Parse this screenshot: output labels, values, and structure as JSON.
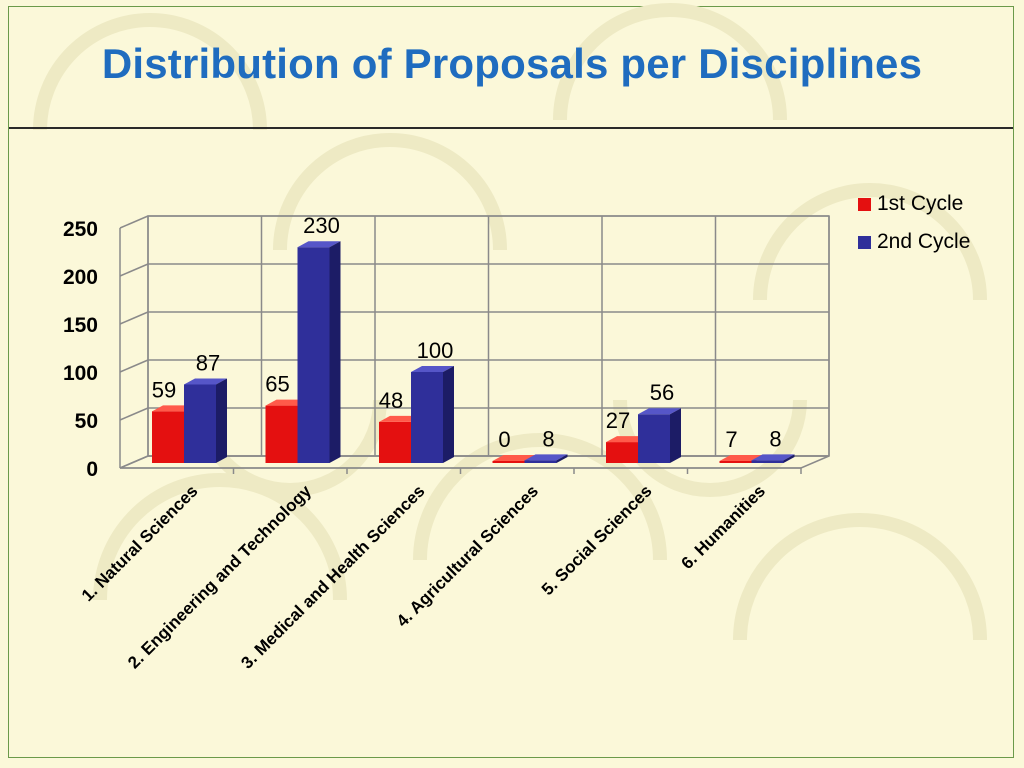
{
  "slide": {
    "title": "Distribution of Proposals per Disciplines"
  },
  "colors": {
    "background": "#fbf8d9",
    "title": "#1f6cbf",
    "series_1st": "#e41010",
    "series_2nd": "#2f2f9a",
    "grid": "#8a8a8a"
  },
  "chart_data": {
    "type": "bar",
    "title": "",
    "xlabel": "",
    "ylabel": "",
    "ylim": [
      0,
      250
    ],
    "yticks": [
      "0",
      "50",
      "100",
      "150",
      "200",
      "250"
    ],
    "grid": true,
    "legend_position": "top-right",
    "categories": [
      "1. Natural Sciences",
      "2. Engineering and Technology",
      "3. Medical and Health Sciences",
      "4. Agricultural Sciences",
      "5. Social Sciences",
      "6. Humanities"
    ],
    "series": [
      {
        "name": "1st Cycle",
        "values": [
          59,
          65,
          48,
          0,
          27,
          7
        ]
      },
      {
        "name": "2nd Cycle",
        "values": [
          87,
          230,
          100,
          8,
          56,
          8
        ]
      }
    ]
  }
}
